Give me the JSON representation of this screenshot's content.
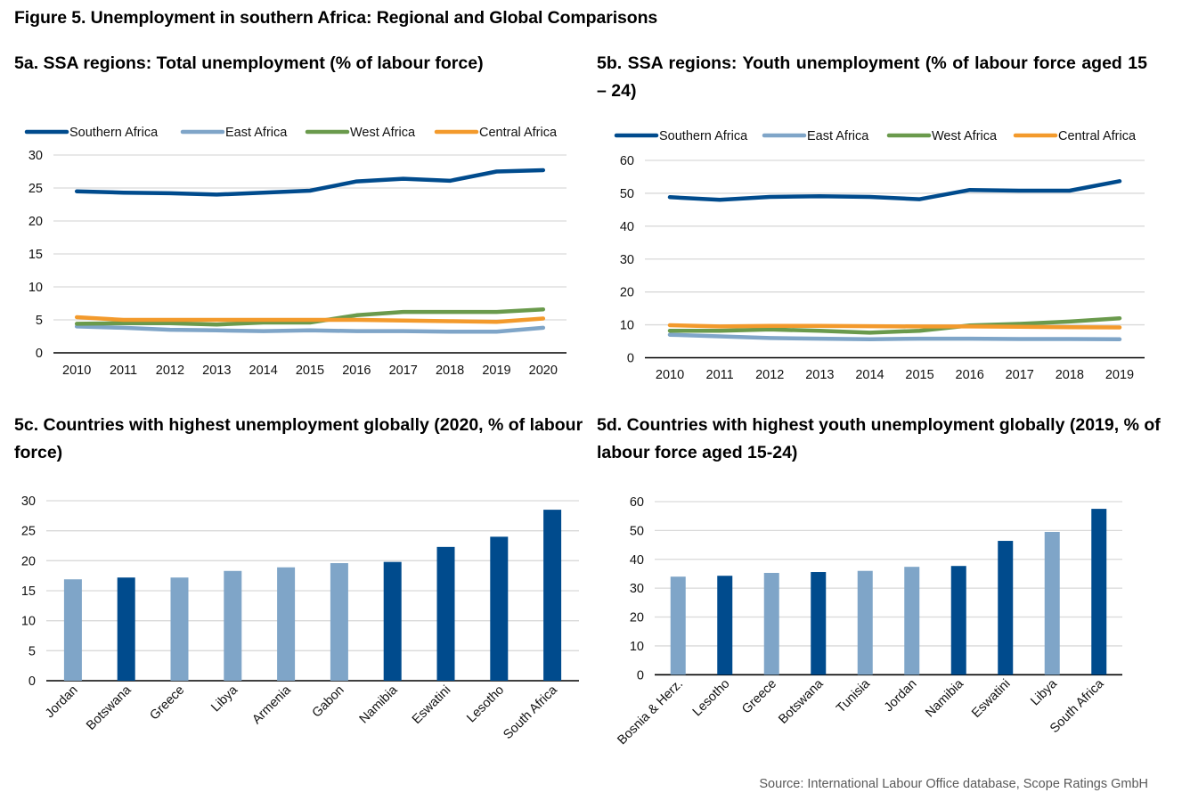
{
  "figure_title": "Figure 5. Unemployment in southern Africa: Regional and Global Comparisons",
  "source": "Source: International Labour Office database, Scope Ratings GmbH",
  "colors": {
    "southern_africa": "#004B8D",
    "east_africa": "#7FA5C8",
    "west_africa": "#6A9A4C",
    "central_africa": "#F39A2C",
    "bar_highlight": "#004B8D",
    "bar_default": "#7FA5C8",
    "gridline": "#D9D9D9",
    "axis": "#000000"
  },
  "chart_data": [
    {
      "id": "5a",
      "type": "line",
      "title": "5a. SSA regions: Total unemployment (% of labour force)",
      "xlabel": "",
      "ylabel": "",
      "x": [
        "2010",
        "2011",
        "2012",
        "2013",
        "2014",
        "2015",
        "2016",
        "2017",
        "2018",
        "2019",
        "2020"
      ],
      "ylim": [
        0,
        30
      ],
      "yticks": [
        "0",
        "5",
        "10",
        "15",
        "20",
        "25",
        "30"
      ],
      "grid": true,
      "legend": "top",
      "series": [
        {
          "name": "Southern Africa",
          "color_key": "southern_africa",
          "values": [
            24.5,
            24.3,
            24.2,
            24.0,
            24.3,
            24.6,
            26.0,
            26.4,
            26.1,
            27.5,
            27.7
          ]
        },
        {
          "name": "East Africa",
          "color_key": "east_africa",
          "values": [
            4.0,
            3.8,
            3.5,
            3.4,
            3.3,
            3.4,
            3.3,
            3.3,
            3.2,
            3.2,
            3.8
          ]
        },
        {
          "name": "West Africa",
          "color_key": "west_africa",
          "values": [
            4.4,
            4.5,
            4.5,
            4.3,
            4.6,
            4.6,
            5.7,
            6.2,
            6.2,
            6.2,
            6.6
          ]
        },
        {
          "name": "Central Africa",
          "color_key": "central_africa",
          "values": [
            5.4,
            5.0,
            5.0,
            5.0,
            5.0,
            5.0,
            5.0,
            4.9,
            4.8,
            4.7,
            5.2
          ]
        }
      ]
    },
    {
      "id": "5b",
      "type": "line",
      "title": "5b. SSA regions: Youth unemployment (% of labour force aged 15 – 24)",
      "xlabel": "",
      "ylabel": "",
      "x": [
        "2010",
        "2011",
        "2012",
        "2013",
        "2014",
        "2015",
        "2016",
        "2017",
        "2018",
        "2019"
      ],
      "ylim": [
        0,
        60
      ],
      "yticks": [
        "0",
        "10",
        "20",
        "30",
        "40",
        "50",
        "60"
      ],
      "grid": true,
      "legend": "top",
      "series": [
        {
          "name": "Southern Africa",
          "color_key": "southern_africa",
          "values": [
            48.8,
            48.0,
            48.9,
            49.1,
            48.9,
            48.2,
            51.0,
            50.8,
            50.8,
            53.7
          ]
        },
        {
          "name": "East Africa",
          "color_key": "east_africa",
          "values": [
            7.0,
            6.5,
            6.0,
            5.8,
            5.6,
            5.8,
            5.8,
            5.7,
            5.7,
            5.6
          ]
        },
        {
          "name": "West Africa",
          "color_key": "west_africa",
          "values": [
            8.2,
            8.2,
            8.6,
            8.2,
            7.6,
            8.2,
            9.8,
            10.3,
            11.0,
            12.0
          ]
        },
        {
          "name": "Central Africa",
          "color_key": "central_africa",
          "values": [
            9.9,
            9.5,
            9.7,
            9.7,
            9.6,
            9.5,
            9.5,
            9.4,
            9.3,
            9.2
          ]
        }
      ]
    },
    {
      "id": "5c",
      "type": "bar",
      "title": "5c. Countries with highest unemployment globally (2020, % of labour force)",
      "xlabel": "",
      "ylabel": "",
      "categories": [
        "Jordan",
        "Botswana",
        "Greece",
        "Libya",
        "Armenia",
        "Gabon",
        "Namibia",
        "Eswatini",
        "Lesotho",
        "South Africa"
      ],
      "values": [
        16.9,
        17.2,
        17.2,
        18.3,
        18.9,
        19.6,
        19.8,
        22.3,
        24.0,
        28.5
      ],
      "highlighted": [
        false,
        true,
        false,
        false,
        false,
        false,
        true,
        true,
        true,
        true
      ],
      "ylim": [
        0,
        30
      ],
      "yticks": [
        "0",
        "5",
        "10",
        "15",
        "20",
        "25",
        "30"
      ],
      "grid": true
    },
    {
      "id": "5d",
      "type": "bar",
      "title": "5d. Countries with highest youth unemployment globally (2019, % of labour force aged 15-24)",
      "xlabel": "",
      "ylabel": "",
      "categories": [
        "Bosnia & Herz.",
        "Lesotho",
        "Greece",
        "Botswana",
        "Tunisia",
        "Jordan",
        "Namibia",
        "Eswatini",
        "Libya",
        "South Africa"
      ],
      "values": [
        34.0,
        34.3,
        35.3,
        35.6,
        36.0,
        37.4,
        37.7,
        46.4,
        49.5,
        57.5
      ],
      "highlighted": [
        false,
        true,
        false,
        true,
        false,
        false,
        true,
        true,
        false,
        true
      ],
      "ylim": [
        0,
        60
      ],
      "yticks": [
        "0",
        "10",
        "20",
        "30",
        "40",
        "50",
        "60"
      ],
      "grid": true
    }
  ]
}
